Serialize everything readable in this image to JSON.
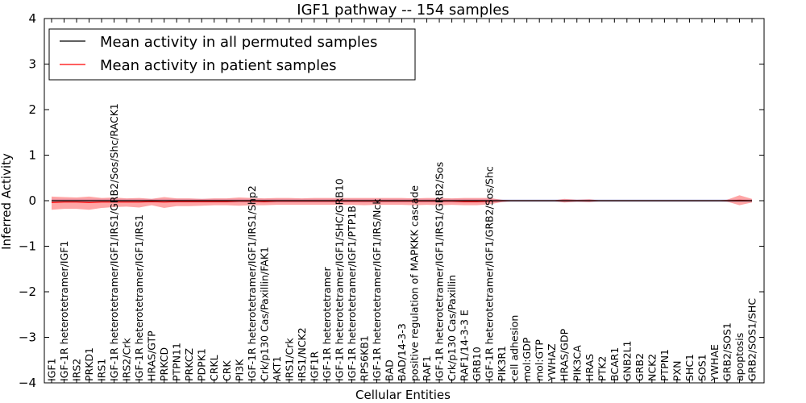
{
  "chart_data": {
    "type": "line",
    "title": "IGF1 pathway -- 154 samples",
    "xlabel": "Cellular Entities",
    "ylabel": "Inferred Activity",
    "ylim": [
      -4,
      4
    ],
    "yticks": [
      -4,
      -3,
      -2,
      -1,
      0,
      1,
      2,
      3,
      4
    ],
    "ytick_labels": [
      "−4",
      "−3",
      "−2",
      "−1",
      "0",
      "1",
      "2",
      "3",
      "4"
    ],
    "grid": false,
    "legend_position": "top-left",
    "categories": [
      "IGF1",
      "IGF-1R heterotetramer/IGF1",
      "IRS2",
      "PRKD1",
      "IRS1",
      "IGF-1R heterotetramer/IGF1/IRS1/GRB2/Sos/Shc/RACK1",
      "IRS2/Crk",
      "IGF-1R heterotetramer/IGF1/IRS1",
      "HRAS/GTP",
      "PRKCD",
      "PTPN11",
      "PRKCZ",
      "PDPK1",
      "CRKL",
      "CRK",
      "PI3K",
      "IGF-1R heterotetramer/IGF1/IRS1/Shp2",
      "Crk/p130 Cas/Paxillin/FAK1",
      "AKT1",
      "IRS1/Crk",
      "IRS1/NCK2",
      "IGF1R",
      "IGF-1R heterotetramer",
      "IGF-1R heterotetramer/IGF1/SHC/GRB10",
      "IGF-1R heterotetramer/IGF1/PTP1B",
      "RPS6KB1",
      "IGF-1R heterotetramer/IGF1/IRS/Nck",
      "BAD",
      "BAD/14-3-3",
      "positive regulation of MAPKKK cascade",
      "RAF1",
      "IGF-1R heterotetramer/IGF1/IRS1/GRB2/Sos",
      "Crk/p130 Cas/Paxillin",
      "RAF1/14-3-3 E",
      "GRB10",
      "IGF-1R heterotetramer/IGF1/GRB2/Sos/Shc",
      "PIK3R1",
      "cell adhesion",
      "mol:GDP",
      "mol:GTP",
      "YWHAZ",
      "HRAS/GDP",
      "PIK3CA",
      "HRAS",
      "PTK2",
      "BCAR1",
      "GNB2L1",
      "GRB2",
      "NCK2",
      "PTPN1",
      "PXN",
      "SHC1",
      "SOS1",
      "YWHAE",
      "GRB2/SOS1",
      "apoptosis",
      "GRB2/SOS1/SHC"
    ],
    "series": [
      {
        "name": "Mean activity in all permuted samples",
        "color": "#000000",
        "values": [
          0.0,
          0.0,
          0.0,
          0.0,
          0.0,
          0.0,
          0.0,
          0.0,
          0.0,
          0.0,
          0.0,
          0.0,
          0.0,
          0.0,
          0.0,
          0.0,
          0.0,
          0.0,
          0.0,
          0.0,
          0.0,
          0.0,
          0.0,
          0.0,
          0.0,
          0.0,
          0.0,
          0.0,
          0.0,
          0.0,
          0.0,
          0.0,
          0.0,
          0.0,
          0.0,
          0.0,
          0.0,
          0.0,
          0.0,
          0.0,
          0.0,
          0.0,
          0.0,
          0.0,
          0.0,
          0.0,
          0.0,
          0.0,
          0.0,
          0.0,
          0.0,
          0.0,
          0.0,
          0.0,
          0.0,
          0.0,
          0.0
        ],
        "band_upper": [
          0.04,
          0.04,
          0.04,
          0.04,
          0.04,
          0.04,
          0.04,
          0.04,
          0.04,
          0.04,
          0.04,
          0.04,
          0.04,
          0.04,
          0.04,
          0.04,
          0.04,
          0.04,
          0.04,
          0.04,
          0.04,
          0.04,
          0.04,
          0.04,
          0.04,
          0.04,
          0.04,
          0.04,
          0.04,
          0.04,
          0.04,
          0.04,
          0.04,
          0.04,
          0.04,
          0.04,
          0.03,
          0.03,
          0.03,
          0.03,
          0.03,
          0.03,
          0.03,
          0.03,
          0.03,
          0.03,
          0.03,
          0.03,
          0.03,
          0.03,
          0.03,
          0.03,
          0.03,
          0.03,
          0.03,
          0.03,
          0.03
        ],
        "band_lower": [
          -0.04,
          -0.04,
          -0.04,
          -0.04,
          -0.04,
          -0.04,
          -0.04,
          -0.04,
          -0.04,
          -0.04,
          -0.04,
          -0.04,
          -0.04,
          -0.04,
          -0.04,
          -0.04,
          -0.04,
          -0.04,
          -0.04,
          -0.04,
          -0.04,
          -0.04,
          -0.04,
          -0.04,
          -0.04,
          -0.04,
          -0.04,
          -0.04,
          -0.04,
          -0.04,
          -0.04,
          -0.04,
          -0.04,
          -0.04,
          -0.04,
          -0.04,
          -0.03,
          -0.03,
          -0.03,
          -0.03,
          -0.03,
          -0.03,
          -0.03,
          -0.03,
          -0.03,
          -0.03,
          -0.03,
          -0.03,
          -0.03,
          -0.03,
          -0.03,
          -0.03,
          -0.03,
          -0.03,
          -0.03,
          -0.03,
          -0.03
        ]
      },
      {
        "name": "Mean activity in patient samples",
        "color": "#ff0000",
        "values": [
          -0.04,
          -0.03,
          -0.03,
          -0.04,
          -0.03,
          -0.03,
          -0.03,
          -0.03,
          -0.02,
          -0.03,
          -0.02,
          -0.02,
          -0.02,
          -0.02,
          -0.02,
          -0.01,
          -0.01,
          -0.02,
          -0.01,
          -0.01,
          -0.01,
          -0.01,
          -0.01,
          -0.01,
          -0.01,
          -0.01,
          -0.01,
          -0.01,
          -0.01,
          -0.01,
          -0.01,
          -0.01,
          -0.01,
          -0.02,
          -0.02,
          -0.01,
          0.0,
          0.0,
          0.0,
          0.0,
          0.0,
          0.0,
          0.0,
          0.0,
          0.0,
          0.0,
          0.0,
          0.0,
          0.0,
          0.0,
          0.0,
          0.0,
          0.0,
          0.0,
          0.0,
          0.01,
          0.0
        ],
        "band_upper": [
          0.09,
          0.08,
          0.07,
          0.09,
          0.06,
          0.07,
          0.05,
          0.06,
          0.04,
          0.08,
          0.05,
          0.05,
          0.04,
          0.05,
          0.05,
          0.07,
          0.06,
          0.05,
          0.06,
          0.06,
          0.05,
          0.06,
          0.06,
          0.06,
          0.06,
          0.06,
          0.06,
          0.06,
          0.06,
          0.05,
          0.06,
          0.06,
          0.05,
          0.06,
          0.06,
          0.06,
          0.02,
          0.0,
          0.0,
          0.0,
          0.0,
          0.04,
          0.02,
          0.03,
          0.0,
          0.0,
          0.0,
          0.0,
          0.0,
          0.0,
          0.0,
          0.0,
          0.0,
          0.0,
          0.02,
          0.12,
          0.04
        ],
        "band_lower": [
          -0.2,
          -0.18,
          -0.18,
          -0.2,
          -0.16,
          -0.14,
          -0.13,
          -0.15,
          -0.1,
          -0.16,
          -0.12,
          -0.12,
          -0.11,
          -0.1,
          -0.1,
          -0.11,
          -0.1,
          -0.1,
          -0.09,
          -0.09,
          -0.09,
          -0.09,
          -0.09,
          -0.09,
          -0.09,
          -0.1,
          -0.09,
          -0.09,
          -0.09,
          -0.1,
          -0.09,
          -0.1,
          -0.09,
          -0.1,
          -0.1,
          -0.08,
          -0.03,
          0.0,
          0.0,
          0.0,
          0.0,
          -0.04,
          -0.02,
          -0.03,
          0.0,
          0.0,
          0.0,
          0.0,
          0.0,
          0.0,
          0.0,
          0.0,
          0.0,
          0.0,
          -0.02,
          -0.1,
          -0.04
        ]
      }
    ]
  }
}
